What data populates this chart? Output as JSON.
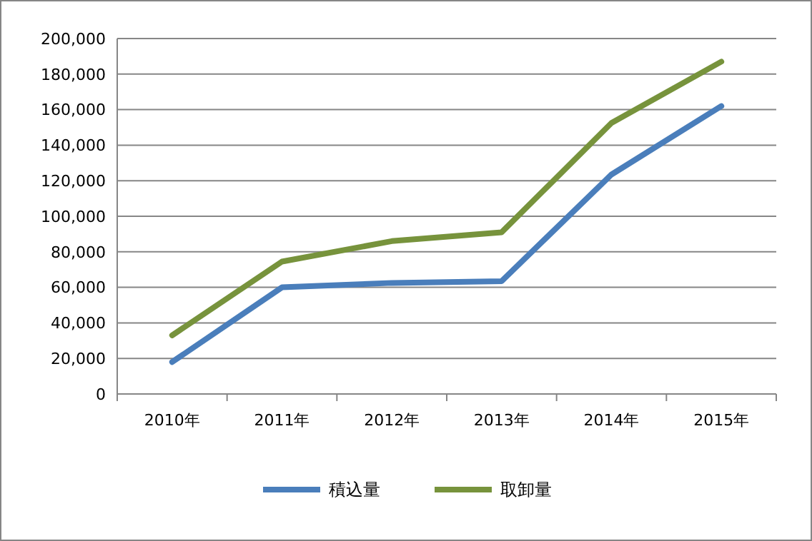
{
  "chart_data": {
    "type": "line",
    "categories": [
      "2010年",
      "2011年",
      "2012年",
      "2013年",
      "2014年",
      "2015年"
    ],
    "series": [
      {
        "name": "積込量",
        "color": "#4a7ebb",
        "values": [
          18000,
          60000,
          62500,
          63500,
          123500,
          162000
        ]
      },
      {
        "name": "取卸量",
        "color": "#77933c",
        "values": [
          33000,
          74500,
          86000,
          91000,
          152500,
          187000
        ]
      }
    ],
    "ylim": [
      0,
      200000
    ],
    "yticks": [
      {
        "value": 0,
        "label": "0"
      },
      {
        "value": 20000,
        "label": "20,000"
      },
      {
        "value": 40000,
        "label": "40,000"
      },
      {
        "value": 60000,
        "label": "60,000"
      },
      {
        "value": 80000,
        "label": "80,000"
      },
      {
        "value": 100000,
        "label": "100,000"
      },
      {
        "value": 120000,
        "label": "120,000"
      },
      {
        "value": 140000,
        "label": "140,000"
      },
      {
        "value": 160000,
        "label": "160,000"
      },
      {
        "value": 180000,
        "label": "180,000"
      },
      {
        "value": 200000,
        "label": "200,000"
      }
    ],
    "grid": "y",
    "legend": "bottom",
    "marker": "none",
    "line_style": "solid"
  }
}
